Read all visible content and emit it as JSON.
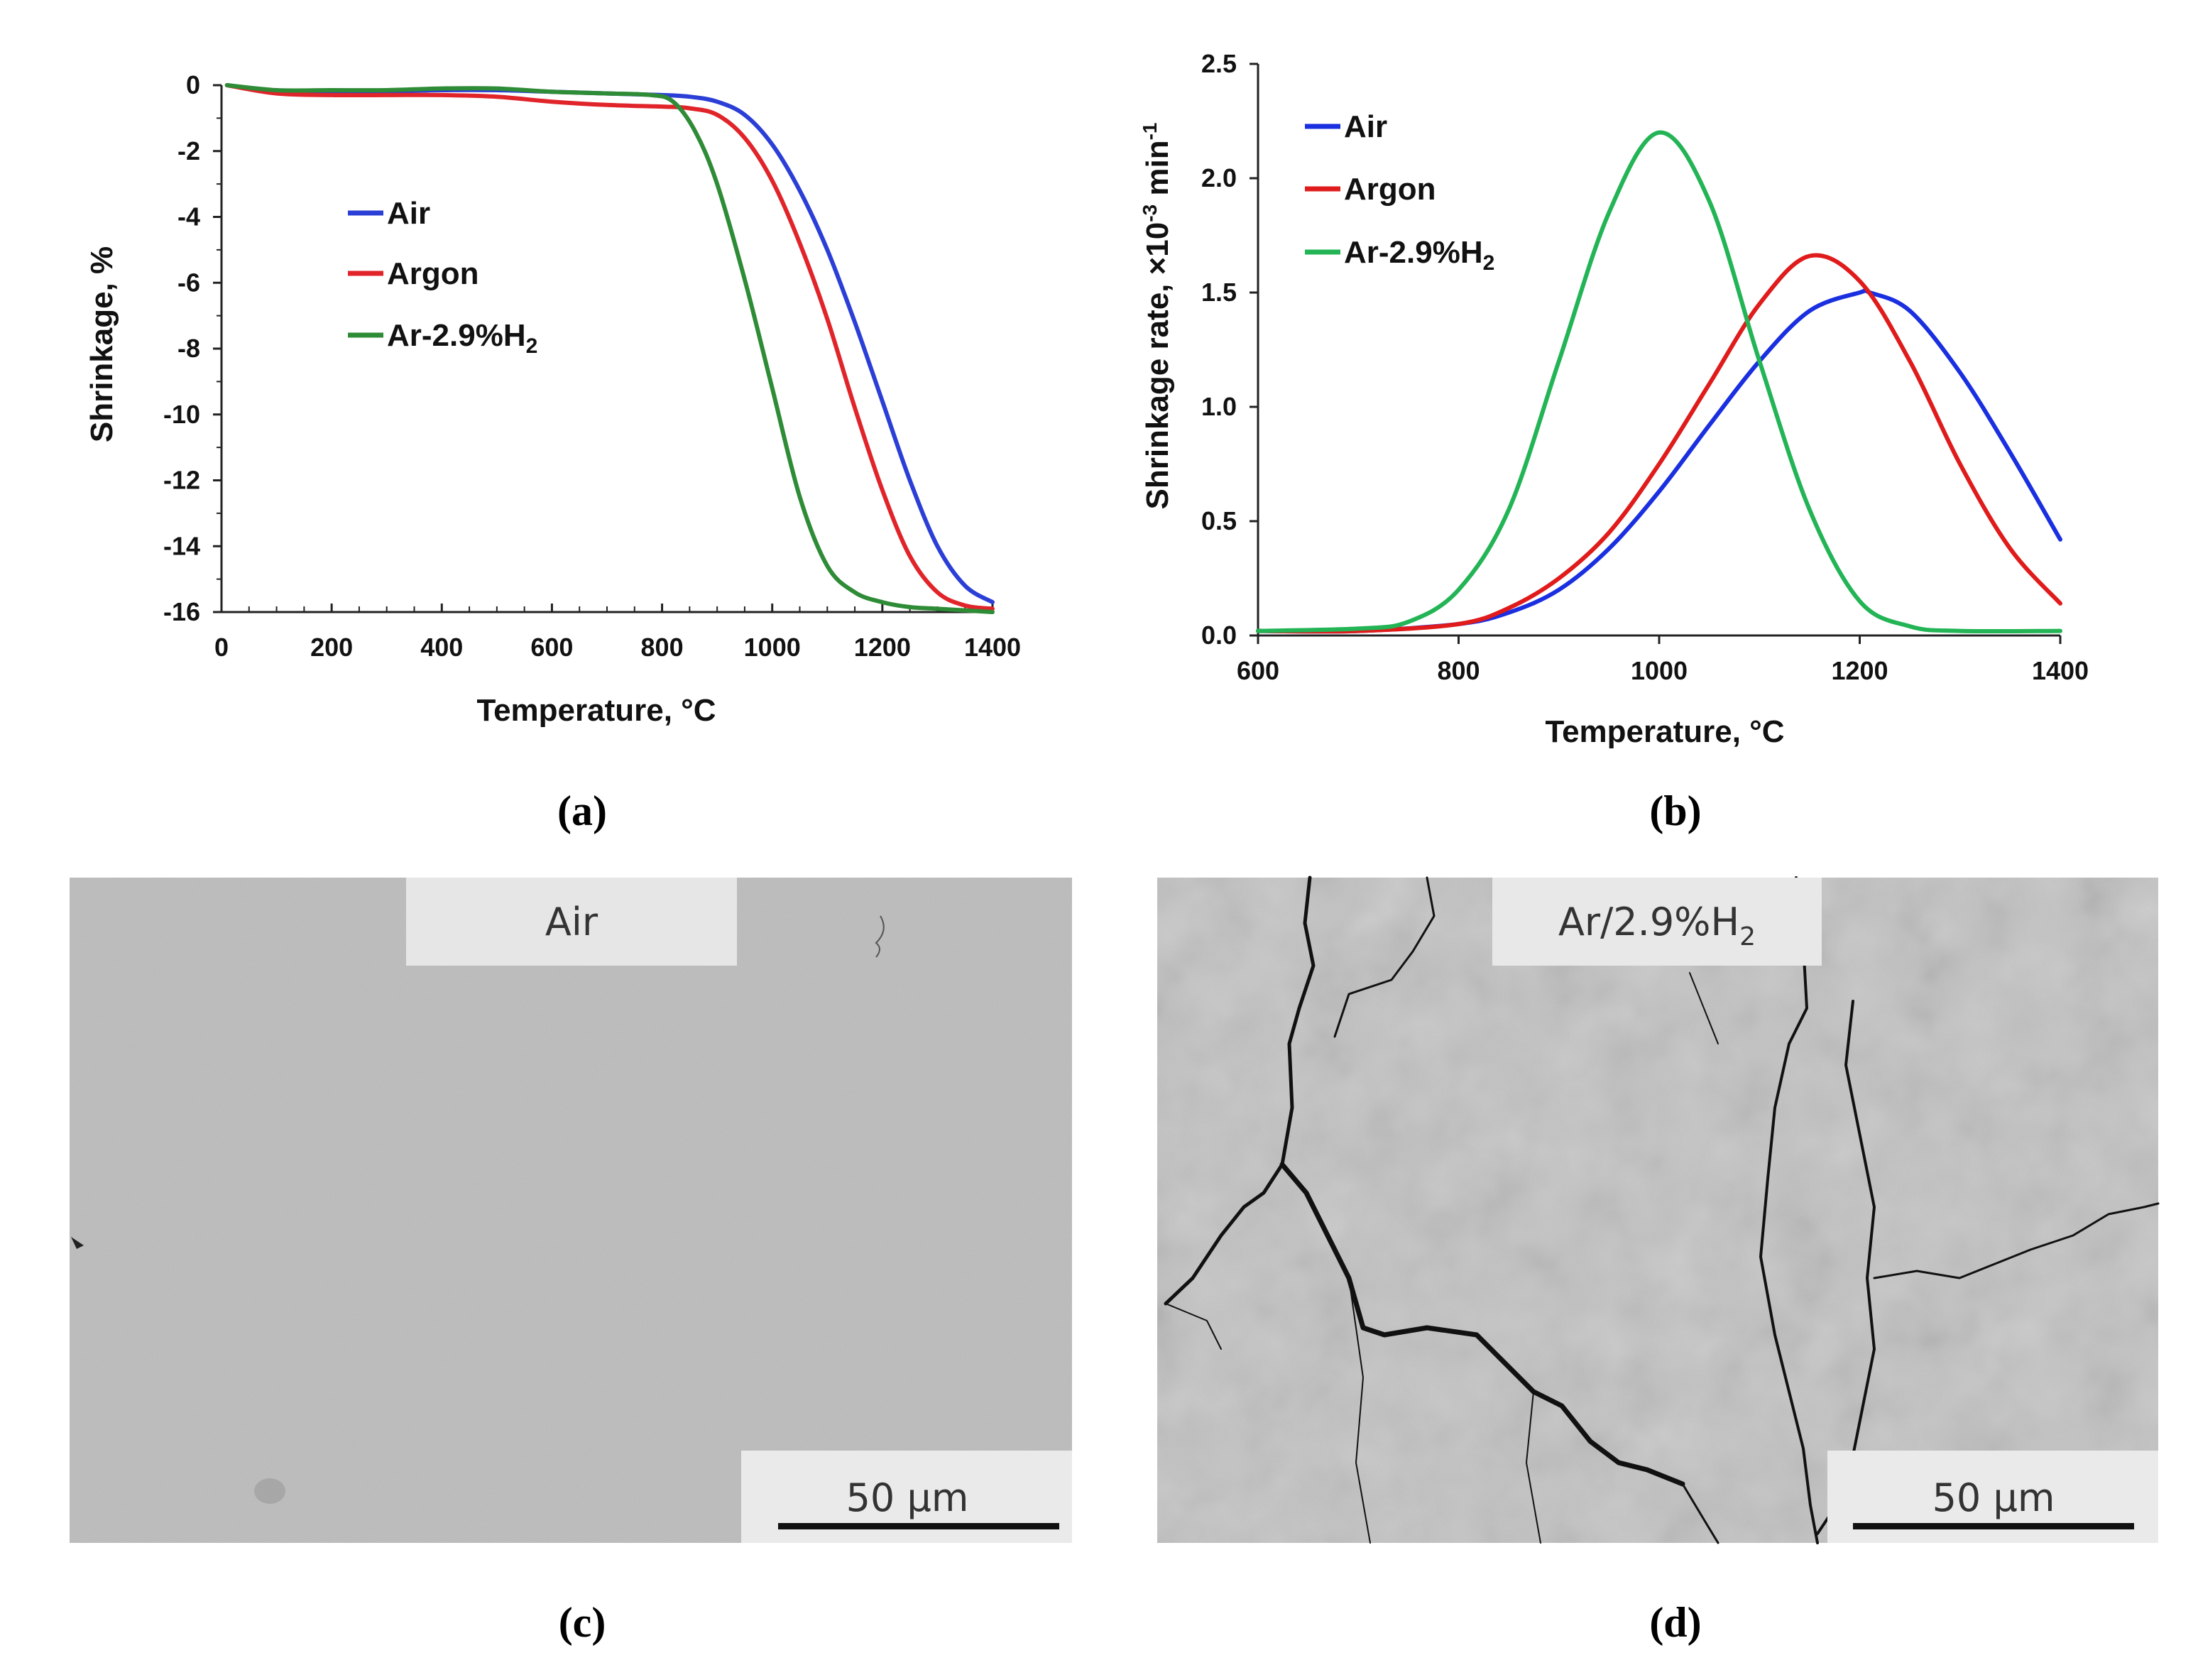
{
  "chart_data": [
    {
      "type": "line",
      "panel": "(a)",
      "xlabel": "Temperature, °C",
      "ylabel": "Shrinkage, %",
      "xlim": [
        0,
        1400
      ],
      "ylim": [
        -16,
        0
      ],
      "xticks": [
        "0",
        "200",
        "400",
        "600",
        "800",
        "1000",
        "1200",
        "1400"
      ],
      "yticks": [
        "0",
        "-2",
        "-4",
        "-6",
        "-8",
        "-10",
        "-12",
        "-14",
        "-16"
      ],
      "legend": [
        {
          "name": "Air",
          "color": "#2b3fd6"
        },
        {
          "name": "Argon",
          "color": "#e0242a"
        },
        {
          "name": "Ar-2.9%H",
          "sub": "2",
          "color": "#2e8b36"
        }
      ],
      "series": [
        {
          "name": "Air",
          "color": "#2b3fd6",
          "x": [
            10,
            100,
            200,
            300,
            400,
            500,
            600,
            700,
            800,
            850,
            900,
            950,
            1000,
            1050,
            1100,
            1150,
            1200,
            1250,
            1300,
            1350,
            1400
          ],
          "y": [
            0,
            -0.2,
            -0.25,
            -0.2,
            -0.15,
            -0.15,
            -0.2,
            -0.25,
            -0.3,
            -0.35,
            -0.5,
            -0.9,
            -1.8,
            -3.2,
            -5.0,
            -7.2,
            -9.6,
            -12.0,
            -14.0,
            -15.2,
            -15.7
          ]
        },
        {
          "name": "Argon",
          "color": "#e0242a",
          "x": [
            10,
            100,
            200,
            300,
            400,
            500,
            600,
            700,
            800,
            850,
            900,
            950,
            1000,
            1050,
            1100,
            1150,
            1200,
            1250,
            1300,
            1350,
            1400
          ],
          "y": [
            0,
            -0.25,
            -0.3,
            -0.3,
            -0.3,
            -0.35,
            -0.5,
            -0.6,
            -0.65,
            -0.7,
            -0.9,
            -1.6,
            -2.9,
            -4.8,
            -7.1,
            -9.8,
            -12.3,
            -14.3,
            -15.4,
            -15.8,
            -15.9
          ]
        },
        {
          "name": "Ar-2.9%H2",
          "color": "#2e8b36",
          "x": [
            10,
            100,
            200,
            300,
            400,
            500,
            600,
            700,
            780,
            820,
            860,
            900,
            950,
            1000,
            1050,
            1100,
            1150,
            1200,
            1250,
            1300,
            1400
          ],
          "y": [
            0,
            -0.15,
            -0.15,
            -0.15,
            -0.1,
            -0.1,
            -0.2,
            -0.25,
            -0.3,
            -0.5,
            -1.4,
            -3.0,
            -5.9,
            -9.2,
            -12.5,
            -14.6,
            -15.4,
            -15.7,
            -15.85,
            -15.9,
            -16.0
          ]
        }
      ]
    },
    {
      "type": "line",
      "panel": "(b)",
      "xlabel": "Temperature, °C",
      "ylabel_main": "Shrinkage rate, ×10",
      "ylabel_sup": "-3",
      "ylabel_unit": " min",
      "ylabel_sup2": "-1",
      "xlim": [
        600,
        1400
      ],
      "ylim": [
        0,
        2.5
      ],
      "xticks": [
        "600",
        "800",
        "1000",
        "1200",
        "1400"
      ],
      "yticks": [
        "0.0",
        "0.5",
        "1.0",
        "1.5",
        "2.0",
        "2.5"
      ],
      "legend": [
        {
          "name": "Air",
          "color": "#1a2fe0"
        },
        {
          "name": "Argon",
          "color": "#e01b1b"
        },
        {
          "name": "Ar-2.9%H",
          "sub": "2",
          "color": "#22b455"
        }
      ],
      "series": [
        {
          "name": "Air",
          "color": "#1a2fe0",
          "x": [
            600,
            700,
            800,
            850,
            900,
            950,
            1000,
            1050,
            1100,
            1150,
            1200,
            1210,
            1250,
            1300,
            1350,
            1400
          ],
          "y": [
            0.02,
            0.02,
            0.05,
            0.1,
            0.2,
            0.38,
            0.63,
            0.92,
            1.2,
            1.42,
            1.5,
            1.5,
            1.42,
            1.15,
            0.8,
            0.42
          ]
        },
        {
          "name": "Argon",
          "color": "#e01b1b",
          "x": [
            600,
            700,
            800,
            850,
            900,
            950,
            1000,
            1050,
            1100,
            1150,
            1200,
            1250,
            1300,
            1350,
            1400
          ],
          "y": [
            0.02,
            0.02,
            0.05,
            0.12,
            0.25,
            0.45,
            0.75,
            1.1,
            1.45,
            1.66,
            1.55,
            1.2,
            0.75,
            0.38,
            0.14
          ]
        },
        {
          "name": "Ar-2.9%H2",
          "color": "#22b455",
          "x": [
            600,
            700,
            750,
            800,
            850,
            900,
            950,
            1000,
            1050,
            1100,
            1150,
            1200,
            1250,
            1300,
            1400
          ],
          "y": [
            0.02,
            0.03,
            0.06,
            0.2,
            0.55,
            1.2,
            1.85,
            2.2,
            1.9,
            1.2,
            0.55,
            0.15,
            0.04,
            0.02,
            0.02
          ]
        }
      ]
    }
  ],
  "panels": {
    "a": "(a)",
    "b": "(b)",
    "c": "(c)",
    "d": "(d)"
  },
  "micrographs": {
    "c": {
      "label": "Air",
      "scale": "50 µm"
    },
    "d": {
      "label_main": "Ar/2.9%H",
      "label_sub": "2",
      "scale": "50 µm"
    }
  }
}
